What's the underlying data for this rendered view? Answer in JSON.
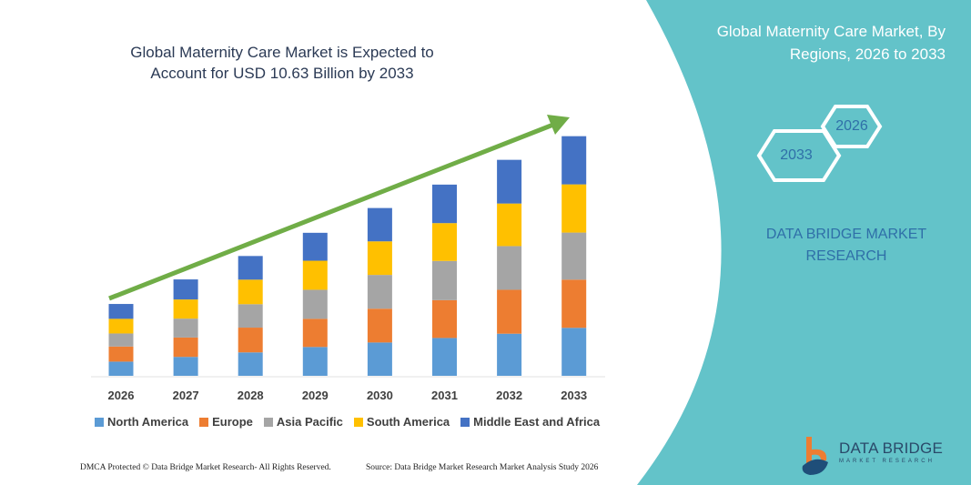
{
  "header": {
    "title": "Global Maternity Care Market is Expected to Account for USD 10.63 Billion by 2033"
  },
  "side_panel": {
    "title": "Global Maternity Care Market, By Regions, 2026 to 2033",
    "hex_start": "2026",
    "hex_end": "2033",
    "brand": "DATA BRIDGE MARKET RESEARCH",
    "color": "#63c3c9"
  },
  "footer": {
    "copyright": "DMCA Protected © Data Bridge Market Research- All Rights Reserved.",
    "source": "Source: Data Bridge Market Research Market Analysis Study 2026",
    "logo_text": "DATA BRIDGE",
    "logo_sub": "MARKET RESEARCH"
  },
  "chart_data": {
    "type": "bar",
    "stacked": true,
    "title": "Global Maternity Care Market is Expected to Account for USD 10.63 Billion by 2033",
    "categories": [
      "2026",
      "2027",
      "2028",
      "2029",
      "2030",
      "2031",
      "2032",
      "2033"
    ],
    "series": [
      {
        "name": "North America",
        "color": "#5b9bd5",
        "values": [
          0.63,
          0.84,
          1.04,
          1.28,
          1.48,
          1.68,
          1.87,
          2.13
        ]
      },
      {
        "name": "Europe",
        "color": "#ed7d31",
        "values": [
          0.67,
          0.86,
          1.1,
          1.25,
          1.5,
          1.68,
          1.95,
          2.14
        ]
      },
      {
        "name": "Asia Pacific",
        "color": "#a5a5a5",
        "values": [
          0.58,
          0.84,
          1.04,
          1.29,
          1.5,
          1.74,
          1.94,
          2.09
        ]
      },
      {
        "name": "South America",
        "color": "#ffc000",
        "values": [
          0.65,
          0.85,
          1.09,
          1.29,
          1.49,
          1.68,
          1.89,
          2.14
        ]
      },
      {
        "name": "Middle East and Africa",
        "color": "#4472c4",
        "values": [
          0.66,
          0.89,
          1.05,
          1.24,
          1.48,
          1.71,
          1.94,
          2.14
        ]
      }
    ],
    "trend_arrow_color": "#70ad47",
    "legend_position": "bottom",
    "grid": false,
    "y_axis_shown": false
  }
}
